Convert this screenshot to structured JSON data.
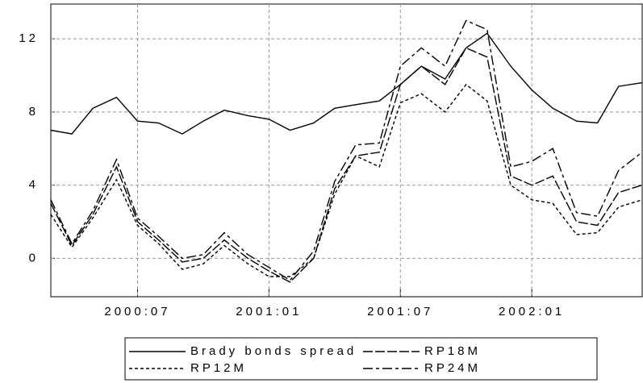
{
  "chart_data": {
    "type": "line",
    "x": [
      2000.17,
      2000.25,
      2000.33,
      2000.42,
      2000.5,
      2000.58,
      2000.67,
      2000.75,
      2000.83,
      2000.92,
      2001.0,
      2001.08,
      2001.17,
      2001.25,
      2001.33,
      2001.42,
      2001.5,
      2001.58,
      2001.67,
      2001.75,
      2001.83,
      2001.92,
      2002.0,
      2002.08,
      2002.17,
      2002.25,
      2002.33,
      2002.42
    ],
    "series": [
      {
        "name": "Brady bonds spread",
        "color": "#000000",
        "dash": "solid",
        "values": [
          7.0,
          6.8,
          8.2,
          8.8,
          7.5,
          7.4,
          6.8,
          7.5,
          8.1,
          7.8,
          7.6,
          7.0,
          7.4,
          8.2,
          8.4,
          8.6,
          9.5,
          10.5,
          9.8,
          11.5,
          12.3,
          10.5,
          9.2,
          8.2,
          7.5,
          7.4,
          9.4,
          9.6
        ]
      },
      {
        "name": "RP12M",
        "color": "#000000",
        "dash": "dashed",
        "values": [
          2.4,
          0.6,
          2.2,
          4.3,
          1.8,
          0.8,
          -0.6,
          -0.3,
          0.7,
          -0.3,
          -1.0,
          -1.0,
          0.0,
          3.5,
          5.6,
          5.0,
          8.5,
          9.0,
          8.0,
          9.5,
          8.6,
          4.0,
          3.2,
          3.0,
          1.3,
          1.4,
          2.8,
          3.2
        ]
      },
      {
        "name": "RP18M",
        "color": "#000000",
        "dash": "long-dash",
        "values": [
          3.0,
          0.7,
          2.4,
          5.0,
          2.0,
          1.0,
          -0.2,
          0.0,
          1.0,
          0.0,
          -0.7,
          -1.3,
          0.0,
          3.8,
          5.6,
          5.8,
          9.5,
          10.5,
          9.5,
          11.5,
          11.0,
          4.5,
          4.0,
          4.5,
          2.0,
          1.8,
          3.6,
          4.0
        ]
      },
      {
        "name": "RP24M",
        "color": "#000000",
        "dash": "long-short",
        "values": [
          3.2,
          0.8,
          2.6,
          5.4,
          2.2,
          1.2,
          0.0,
          0.2,
          1.4,
          0.2,
          -0.5,
          -1.2,
          0.4,
          4.2,
          6.2,
          6.3,
          10.5,
          11.5,
          10.5,
          13.0,
          12.5,
          5.0,
          5.3,
          6.0,
          2.5,
          2.3,
          4.8,
          5.8
        ]
      }
    ],
    "xlim": [
      2000.17,
      2002.42
    ],
    "xticks": [
      {
        "value": 2000.5,
        "label": "2000:07"
      },
      {
        "value": 2001.0,
        "label": "2001:01"
      },
      {
        "value": 2001.5,
        "label": "2001:07"
      },
      {
        "value": 2002.0,
        "label": "2002:01"
      }
    ],
    "ylim": [
      -2.1,
      13.9
    ],
    "yticks": [
      0,
      4,
      8,
      12
    ],
    "grid": true,
    "legend": "bottom"
  }
}
